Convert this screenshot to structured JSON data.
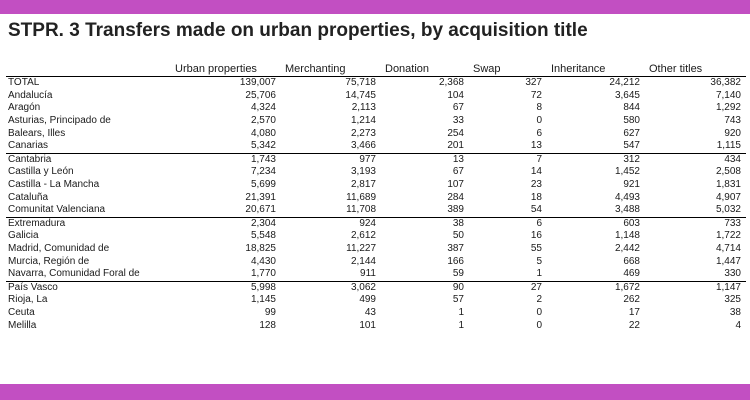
{
  "colors": {
    "band": "#c24fc2"
  },
  "title": "STPR. 3 Transfers made on urban properties, by acquisition title",
  "headers": [
    "",
    "Urban properties",
    "Merchanting",
    "Donation",
    "Swap",
    "Inheritance",
    "Other titles"
  ],
  "rows": [
    [
      "TOTAL",
      "139,007",
      "75,718",
      "2,368",
      "327",
      "24,212",
      "36,382"
    ],
    [
      "Andalucía",
      "25,706",
      "14,745",
      "104",
      "72",
      "3,645",
      "7,140"
    ],
    [
      "Aragón",
      "4,324",
      "2,113",
      "67",
      "8",
      "844",
      "1,292"
    ],
    [
      "Asturias, Principado de",
      "2,570",
      "1,214",
      "33",
      "0",
      "580",
      "743"
    ],
    [
      "Balears, Illes",
      "4,080",
      "2,273",
      "254",
      "6",
      "627",
      "920"
    ],
    [
      "Canarias",
      "5,342",
      "3,466",
      "201",
      "13",
      "547",
      "1,115"
    ],
    [
      "Cantabria",
      "1,743",
      "977",
      "13",
      "7",
      "312",
      "434"
    ],
    [
      "Castilla y León",
      "7,234",
      "3,193",
      "67",
      "14",
      "1,452",
      "2,508"
    ],
    [
      "Castilla - La Mancha",
      "5,699",
      "2,817",
      "107",
      "23",
      "921",
      "1,831"
    ],
    [
      "Cataluña",
      "21,391",
      "11,689",
      "284",
      "18",
      "4,493",
      "4,907"
    ],
    [
      "Comunitat Valenciana",
      "20,671",
      "11,708",
      "389",
      "54",
      "3,488",
      "5,032"
    ],
    [
      "Extremadura",
      "2,304",
      "924",
      "38",
      "6",
      "603",
      "733"
    ],
    [
      "Galicia",
      "5,548",
      "2,612",
      "50",
      "16",
      "1,148",
      "1,722"
    ],
    [
      "Madrid, Comunidad de",
      "18,825",
      "11,227",
      "387",
      "55",
      "2,442",
      "4,714"
    ],
    [
      "Murcia, Región de",
      "4,430",
      "2,144",
      "166",
      "5",
      "668",
      "1,447"
    ],
    [
      "Navarra, Comunidad Foral de",
      "1,770",
      "911",
      "59",
      "1",
      "469",
      "330"
    ],
    [
      "País Vasco",
      "5,998",
      "3,062",
      "90",
      "27",
      "1,672",
      "1,147"
    ],
    [
      "Rioja, La",
      "1,145",
      "499",
      "57",
      "2",
      "262",
      "325"
    ],
    [
      "Ceuta",
      "99",
      "43",
      "1",
      "0",
      "17",
      "38"
    ],
    [
      "Melilla",
      "128",
      "101",
      "1",
      "0",
      "22",
      "4"
    ]
  ]
}
